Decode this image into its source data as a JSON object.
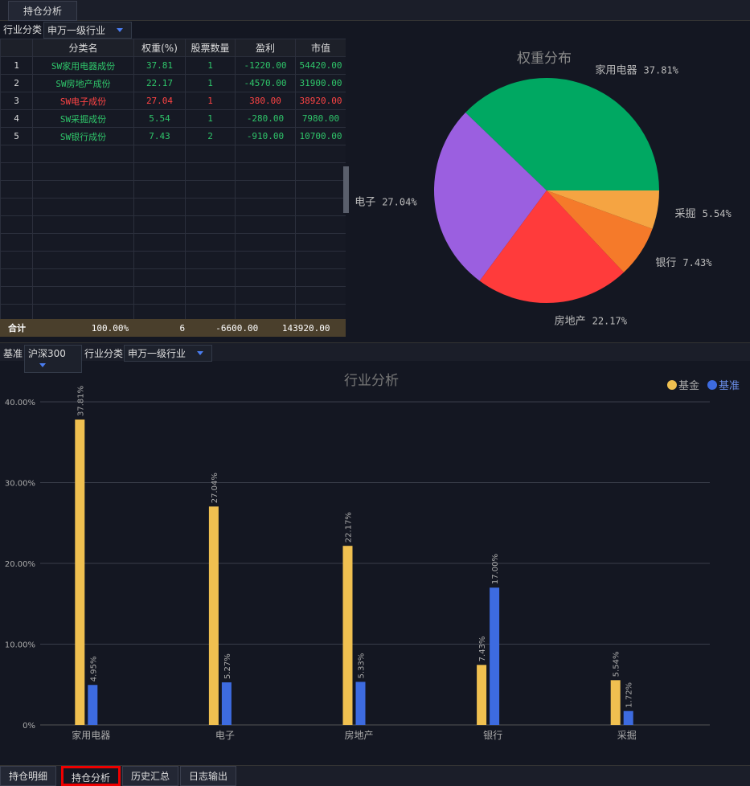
{
  "tabs": {
    "top": "持仓分析",
    "bottom": [
      "持仓明细",
      "持仓分析",
      "历史汇总",
      "日志输出"
    ],
    "active_bottom": 1
  },
  "filters": {
    "top": {
      "label": "行业分类",
      "value": "申万一级行业"
    },
    "lower": [
      {
        "label": "基准",
        "value": "沪深300"
      },
      {
        "label": "行业分类",
        "value": "申万一级行业"
      }
    ]
  },
  "table": {
    "headers": [
      "分类名",
      "权重(%)",
      "股票数量",
      "盈利",
      "市值"
    ],
    "rows": [
      {
        "cells": [
          "1",
          "SW家用电器成份",
          "37.81",
          "1",
          "-1220.00",
          "54420.00"
        ],
        "color": "#2fc56a"
      },
      {
        "cells": [
          "2",
          "SW房地产成份",
          "22.17",
          "1",
          "-4570.00",
          "31900.00"
        ],
        "color": "#2fc56a"
      },
      {
        "cells": [
          "3",
          "SW电子成份",
          "27.04",
          "1",
          "380.00",
          "38920.00"
        ],
        "color": "#ff4444"
      },
      {
        "cells": [
          "4",
          "SW采掘成份",
          "5.54",
          "1",
          "-280.00",
          "7980.00"
        ],
        "color": "#2fc56a"
      },
      {
        "cells": [
          "5",
          "SW银行成份",
          "7.43",
          "2",
          "-910.00",
          "10700.00"
        ],
        "color": "#2fc56a"
      }
    ],
    "total": [
      "合计",
      "100.00%",
      "6",
      "-6600.00",
      "143920.00"
    ]
  },
  "chart_data": [
    {
      "type": "pie",
      "title": "权重分布",
      "categories": [
        "家用电器",
        "电子",
        "房地产",
        "银行",
        "采掘"
      ],
      "values": [
        37.81,
        27.04,
        22.17,
        7.43,
        5.54
      ],
      "value_labels": [
        "37.81%",
        "27.04%",
        "22.17%",
        "7.43%",
        "5.54%"
      ],
      "colors": [
        "#00a862",
        "#9b5fe0",
        "#ff3b3b",
        "#f57a2a",
        "#f5a442"
      ]
    },
    {
      "type": "bar",
      "title": "行业分析",
      "categories": [
        "家用电器",
        "电子",
        "房地产",
        "银行",
        "采掘"
      ],
      "series": [
        {
          "name": "基金",
          "color": "#f0c050",
          "values": [
            37.81,
            27.04,
            22.17,
            7.43,
            5.54
          ],
          "value_labels": [
            "37.81%",
            "27.04%",
            "22.17%",
            "7.43%",
            "5.54%"
          ]
        },
        {
          "name": "基准",
          "color": "#3d6be0",
          "values": [
            4.95,
            5.27,
            5.33,
            17.0,
            1.72
          ],
          "value_labels": [
            "4.95%",
            "5.27%",
            "5.33%",
            "17.00%",
            "1.72%"
          ]
        }
      ],
      "ylim": [
        0,
        40
      ],
      "yticks": [
        {
          "value": 0,
          "label": "0%"
        },
        {
          "value": 10,
          "label": "10.00%"
        },
        {
          "value": 20,
          "label": "20.00%"
        },
        {
          "value": 30,
          "label": "30.00%"
        },
        {
          "value": 40,
          "label": "40.00%"
        }
      ],
      "grid": true,
      "legend": "top-right"
    }
  ]
}
